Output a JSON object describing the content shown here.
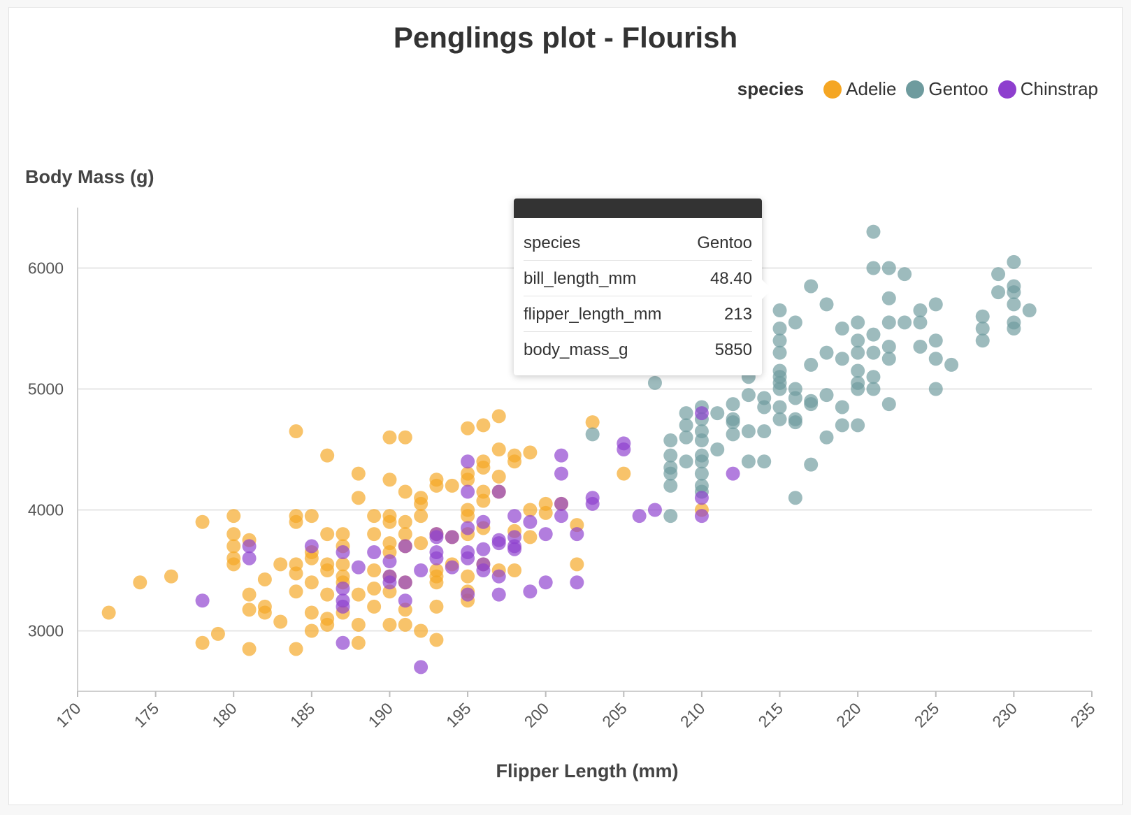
{
  "chart_data": {
    "type": "scatter",
    "title": "Penglings plot - Flourish",
    "xlabel": "Flipper Length (mm)",
    "ylabel": "Body Mass (g)",
    "xlim": [
      170,
      235
    ],
    "ylim": [
      2500,
      6500
    ],
    "x_ticks": [
      170,
      175,
      180,
      185,
      190,
      195,
      200,
      205,
      210,
      215,
      220,
      225,
      230,
      235
    ],
    "y_ticks": [
      3000,
      4000,
      5000,
      6000
    ],
    "grid": "horizontal",
    "legend": {
      "title": "species",
      "position": "top-right"
    },
    "series": [
      {
        "name": "Adelie",
        "color": "#F5A623",
        "points": [
          [
            172,
            3150
          ],
          [
            174,
            3400
          ],
          [
            176,
            3450
          ],
          [
            178,
            3900
          ],
          [
            178,
            2900
          ],
          [
            179,
            2975
          ],
          [
            180,
            3950
          ],
          [
            180,
            3800
          ],
          [
            180,
            3700
          ],
          [
            180,
            3600
          ],
          [
            180,
            3550
          ],
          [
            181,
            3750
          ],
          [
            181,
            3300
          ],
          [
            181,
            3175
          ],
          [
            181,
            2850
          ],
          [
            182,
            3425
          ],
          [
            182,
            3200
          ],
          [
            182,
            3150
          ],
          [
            183,
            3550
          ],
          [
            183,
            3075
          ],
          [
            184,
            4650
          ],
          [
            184,
            3950
          ],
          [
            184,
            3900
          ],
          [
            184,
            3550
          ],
          [
            184,
            3475
          ],
          [
            184,
            3325
          ],
          [
            184,
            2850
          ],
          [
            185,
            3950
          ],
          [
            185,
            3650
          ],
          [
            185,
            3600
          ],
          [
            185,
            3400
          ],
          [
            185,
            3150
          ],
          [
            185,
            3000
          ],
          [
            186,
            4450
          ],
          [
            186,
            3800
          ],
          [
            186,
            3550
          ],
          [
            186,
            3500
          ],
          [
            186,
            3300
          ],
          [
            186,
            3100
          ],
          [
            186,
            3050
          ],
          [
            187,
            3800
          ],
          [
            187,
            3700
          ],
          [
            187,
            3550
          ],
          [
            187,
            3450
          ],
          [
            187,
            3400
          ],
          [
            187,
            3150
          ],
          [
            188,
            4300
          ],
          [
            188,
            4100
          ],
          [
            188,
            3300
          ],
          [
            188,
            3050
          ],
          [
            188,
            2900
          ],
          [
            189,
            3950
          ],
          [
            189,
            3800
          ],
          [
            189,
            3500
          ],
          [
            189,
            3350
          ],
          [
            189,
            3200
          ],
          [
            190,
            4600
          ],
          [
            190,
            4250
          ],
          [
            190,
            3950
          ],
          [
            190,
            3900
          ],
          [
            190,
            3725
          ],
          [
            190,
            3650
          ],
          [
            190,
            3450
          ],
          [
            190,
            3325
          ],
          [
            190,
            3050
          ],
          [
            191,
            4600
          ],
          [
            191,
            4150
          ],
          [
            191,
            3900
          ],
          [
            191,
            3800
          ],
          [
            191,
            3700
          ],
          [
            191,
            3400
          ],
          [
            191,
            3175
          ],
          [
            191,
            3050
          ],
          [
            192,
            4100
          ],
          [
            192,
            4050
          ],
          [
            192,
            3950
          ],
          [
            192,
            3725
          ],
          [
            192,
            3000
          ],
          [
            193,
            4250
          ],
          [
            193,
            4200
          ],
          [
            193,
            3800
          ],
          [
            193,
            3500
          ],
          [
            193,
            3450
          ],
          [
            193,
            3400
          ],
          [
            193,
            3200
          ],
          [
            193,
            2925
          ],
          [
            194,
            4200
          ],
          [
            194,
            3775
          ],
          [
            194,
            3550
          ],
          [
            195,
            4675
          ],
          [
            195,
            4300
          ],
          [
            195,
            4250
          ],
          [
            195,
            4000
          ],
          [
            195,
            3950
          ],
          [
            195,
            3800
          ],
          [
            195,
            3450
          ],
          [
            195,
            3325
          ],
          [
            195,
            3250
          ],
          [
            196,
            4700
          ],
          [
            196,
            4400
          ],
          [
            196,
            4350
          ],
          [
            196,
            4150
          ],
          [
            196,
            4075
          ],
          [
            196,
            3850
          ],
          [
            196,
            3550
          ],
          [
            197,
            4775
          ],
          [
            197,
            4500
          ],
          [
            197,
            4275
          ],
          [
            197,
            4150
          ],
          [
            197,
            3500
          ],
          [
            198,
            4450
          ],
          [
            198,
            4400
          ],
          [
            198,
            3825
          ],
          [
            198,
            3500
          ],
          [
            199,
            4475
          ],
          [
            199,
            4000
          ],
          [
            199,
            3775
          ],
          [
            200,
            4050
          ],
          [
            200,
            3975
          ],
          [
            201,
            4050
          ],
          [
            202,
            3875
          ],
          [
            202,
            3550
          ],
          [
            203,
            4725
          ],
          [
            205,
            4300
          ],
          [
            210,
            4000
          ]
        ]
      },
      {
        "name": "Gentoo",
        "color": "#6E9B9E",
        "points": [
          [
            203,
            4625
          ],
          [
            207,
            5050
          ],
          [
            208,
            4575
          ],
          [
            208,
            4450
          ],
          [
            208,
            4350
          ],
          [
            208,
            4300
          ],
          [
            208,
            4200
          ],
          [
            208,
            3950
          ],
          [
            209,
            4800
          ],
          [
            209,
            4700
          ],
          [
            209,
            4600
          ],
          [
            209,
            4400
          ],
          [
            210,
            4850
          ],
          [
            210,
            4750
          ],
          [
            210,
            4650
          ],
          [
            210,
            4575
          ],
          [
            210,
            4450
          ],
          [
            210,
            4400
          ],
          [
            210,
            4300
          ],
          [
            210,
            4200
          ],
          [
            210,
            4150
          ],
          [
            211,
            4800
          ],
          [
            211,
            4500
          ],
          [
            212,
            5200
          ],
          [
            212,
            4875
          ],
          [
            212,
            4750
          ],
          [
            212,
            4725
          ],
          [
            212,
            4625
          ],
          [
            213,
            5850
          ],
          [
            213,
            5400
          ],
          [
            213,
            5100
          ],
          [
            213,
            4950
          ],
          [
            213,
            4650
          ],
          [
            213,
            4400
          ],
          [
            214,
            4925
          ],
          [
            214,
            4850
          ],
          [
            214,
            4650
          ],
          [
            214,
            4400
          ],
          [
            215,
            5650
          ],
          [
            215,
            5500
          ],
          [
            215,
            5400
          ],
          [
            215,
            5300
          ],
          [
            215,
            5150
          ],
          [
            215,
            5100
          ],
          [
            215,
            5050
          ],
          [
            215,
            5000
          ],
          [
            215,
            4850
          ],
          [
            215,
            4750
          ],
          [
            216,
            5550
          ],
          [
            216,
            5000
          ],
          [
            216,
            4925
          ],
          [
            216,
            4750
          ],
          [
            216,
            4725
          ],
          [
            216,
            4100
          ],
          [
            217,
            5850
          ],
          [
            217,
            5200
          ],
          [
            217,
            4900
          ],
          [
            217,
            4875
          ],
          [
            217,
            4375
          ],
          [
            218,
            5700
          ],
          [
            218,
            5300
          ],
          [
            218,
            4950
          ],
          [
            218,
            4600
          ],
          [
            219,
            5500
          ],
          [
            219,
            5250
          ],
          [
            219,
            4850
          ],
          [
            219,
            4700
          ],
          [
            220,
            5550
          ],
          [
            220,
            5400
          ],
          [
            220,
            5300
          ],
          [
            220,
            5150
          ],
          [
            220,
            5050
          ],
          [
            220,
            5000
          ],
          [
            220,
            4700
          ],
          [
            221,
            6300
          ],
          [
            221,
            5450
          ],
          [
            221,
            5300
          ],
          [
            221,
            5100
          ],
          [
            221,
            5000
          ],
          [
            222,
            6000
          ],
          [
            222,
            5750
          ],
          [
            222,
            5550
          ],
          [
            222,
            5350
          ],
          [
            222,
            5250
          ],
          [
            222,
            4875
          ],
          [
            223,
            5950
          ],
          [
            223,
            5550
          ],
          [
            224,
            5650
          ],
          [
            224,
            5550
          ],
          [
            224,
            5350
          ],
          [
            225,
            5700
          ],
          [
            225,
            5400
          ],
          [
            225,
            5250
          ],
          [
            225,
            5000
          ],
          [
            226,
            5200
          ],
          [
            228,
            5600
          ],
          [
            228,
            5500
          ],
          [
            228,
            5400
          ],
          [
            229,
            5950
          ],
          [
            229,
            5800
          ],
          [
            230,
            6050
          ],
          [
            230,
            5850
          ],
          [
            230,
            5800
          ],
          [
            230,
            5700
          ],
          [
            230,
            5550
          ],
          [
            230,
            5500
          ],
          [
            231,
            5650
          ],
          [
            221,
            6000
          ]
        ]
      },
      {
        "name": "Chinstrap",
        "color": "#8E3FCE",
        "points": [
          [
            178,
            3250
          ],
          [
            181,
            3700
          ],
          [
            181,
            3600
          ],
          [
            185,
            3700
          ],
          [
            187,
            3650
          ],
          [
            187,
            3350
          ],
          [
            187,
            3250
          ],
          [
            187,
            3200
          ],
          [
            187,
            2900
          ],
          [
            188,
            3525
          ],
          [
            189,
            3650
          ],
          [
            190,
            3575
          ],
          [
            190,
            3450
          ],
          [
            190,
            3400
          ],
          [
            191,
            3700
          ],
          [
            191,
            3400
          ],
          [
            191,
            3250
          ],
          [
            192,
            3500
          ],
          [
            192,
            2700
          ],
          [
            193,
            3800
          ],
          [
            193,
            3775
          ],
          [
            193,
            3650
          ],
          [
            193,
            3600
          ],
          [
            194,
            3775
          ],
          [
            194,
            3525
          ],
          [
            195,
            4400
          ],
          [
            195,
            4150
          ],
          [
            195,
            3850
          ],
          [
            195,
            3650
          ],
          [
            195,
            3600
          ],
          [
            195,
            3300
          ],
          [
            196,
            3900
          ],
          [
            196,
            3675
          ],
          [
            196,
            3550
          ],
          [
            196,
            3500
          ],
          [
            197,
            4150
          ],
          [
            197,
            3750
          ],
          [
            197,
            3725
          ],
          [
            197,
            3450
          ],
          [
            197,
            3300
          ],
          [
            198,
            3950
          ],
          [
            198,
            3775
          ],
          [
            198,
            3700
          ],
          [
            198,
            3675
          ],
          [
            199,
            3900
          ],
          [
            199,
            3325
          ],
          [
            200,
            3800
          ],
          [
            200,
            3400
          ],
          [
            201,
            4450
          ],
          [
            201,
            4300
          ],
          [
            201,
            4050
          ],
          [
            201,
            3950
          ],
          [
            202,
            3800
          ],
          [
            202,
            3400
          ],
          [
            203,
            4100
          ],
          [
            203,
            4050
          ],
          [
            205,
            4550
          ],
          [
            205,
            4500
          ],
          [
            206,
            3950
          ],
          [
            207,
            4000
          ],
          [
            210,
            4800
          ],
          [
            210,
            4100
          ],
          [
            210,
            3950
          ],
          [
            212,
            4300
          ]
        ]
      }
    ]
  },
  "tooltip": {
    "rows": [
      {
        "key": "species",
        "value": "Gentoo"
      },
      {
        "key": "bill_length_mm",
        "value": "48.40"
      },
      {
        "key": "flipper_length_mm",
        "value": "213"
      },
      {
        "key": "body_mass_g",
        "value": "5850"
      }
    ]
  }
}
